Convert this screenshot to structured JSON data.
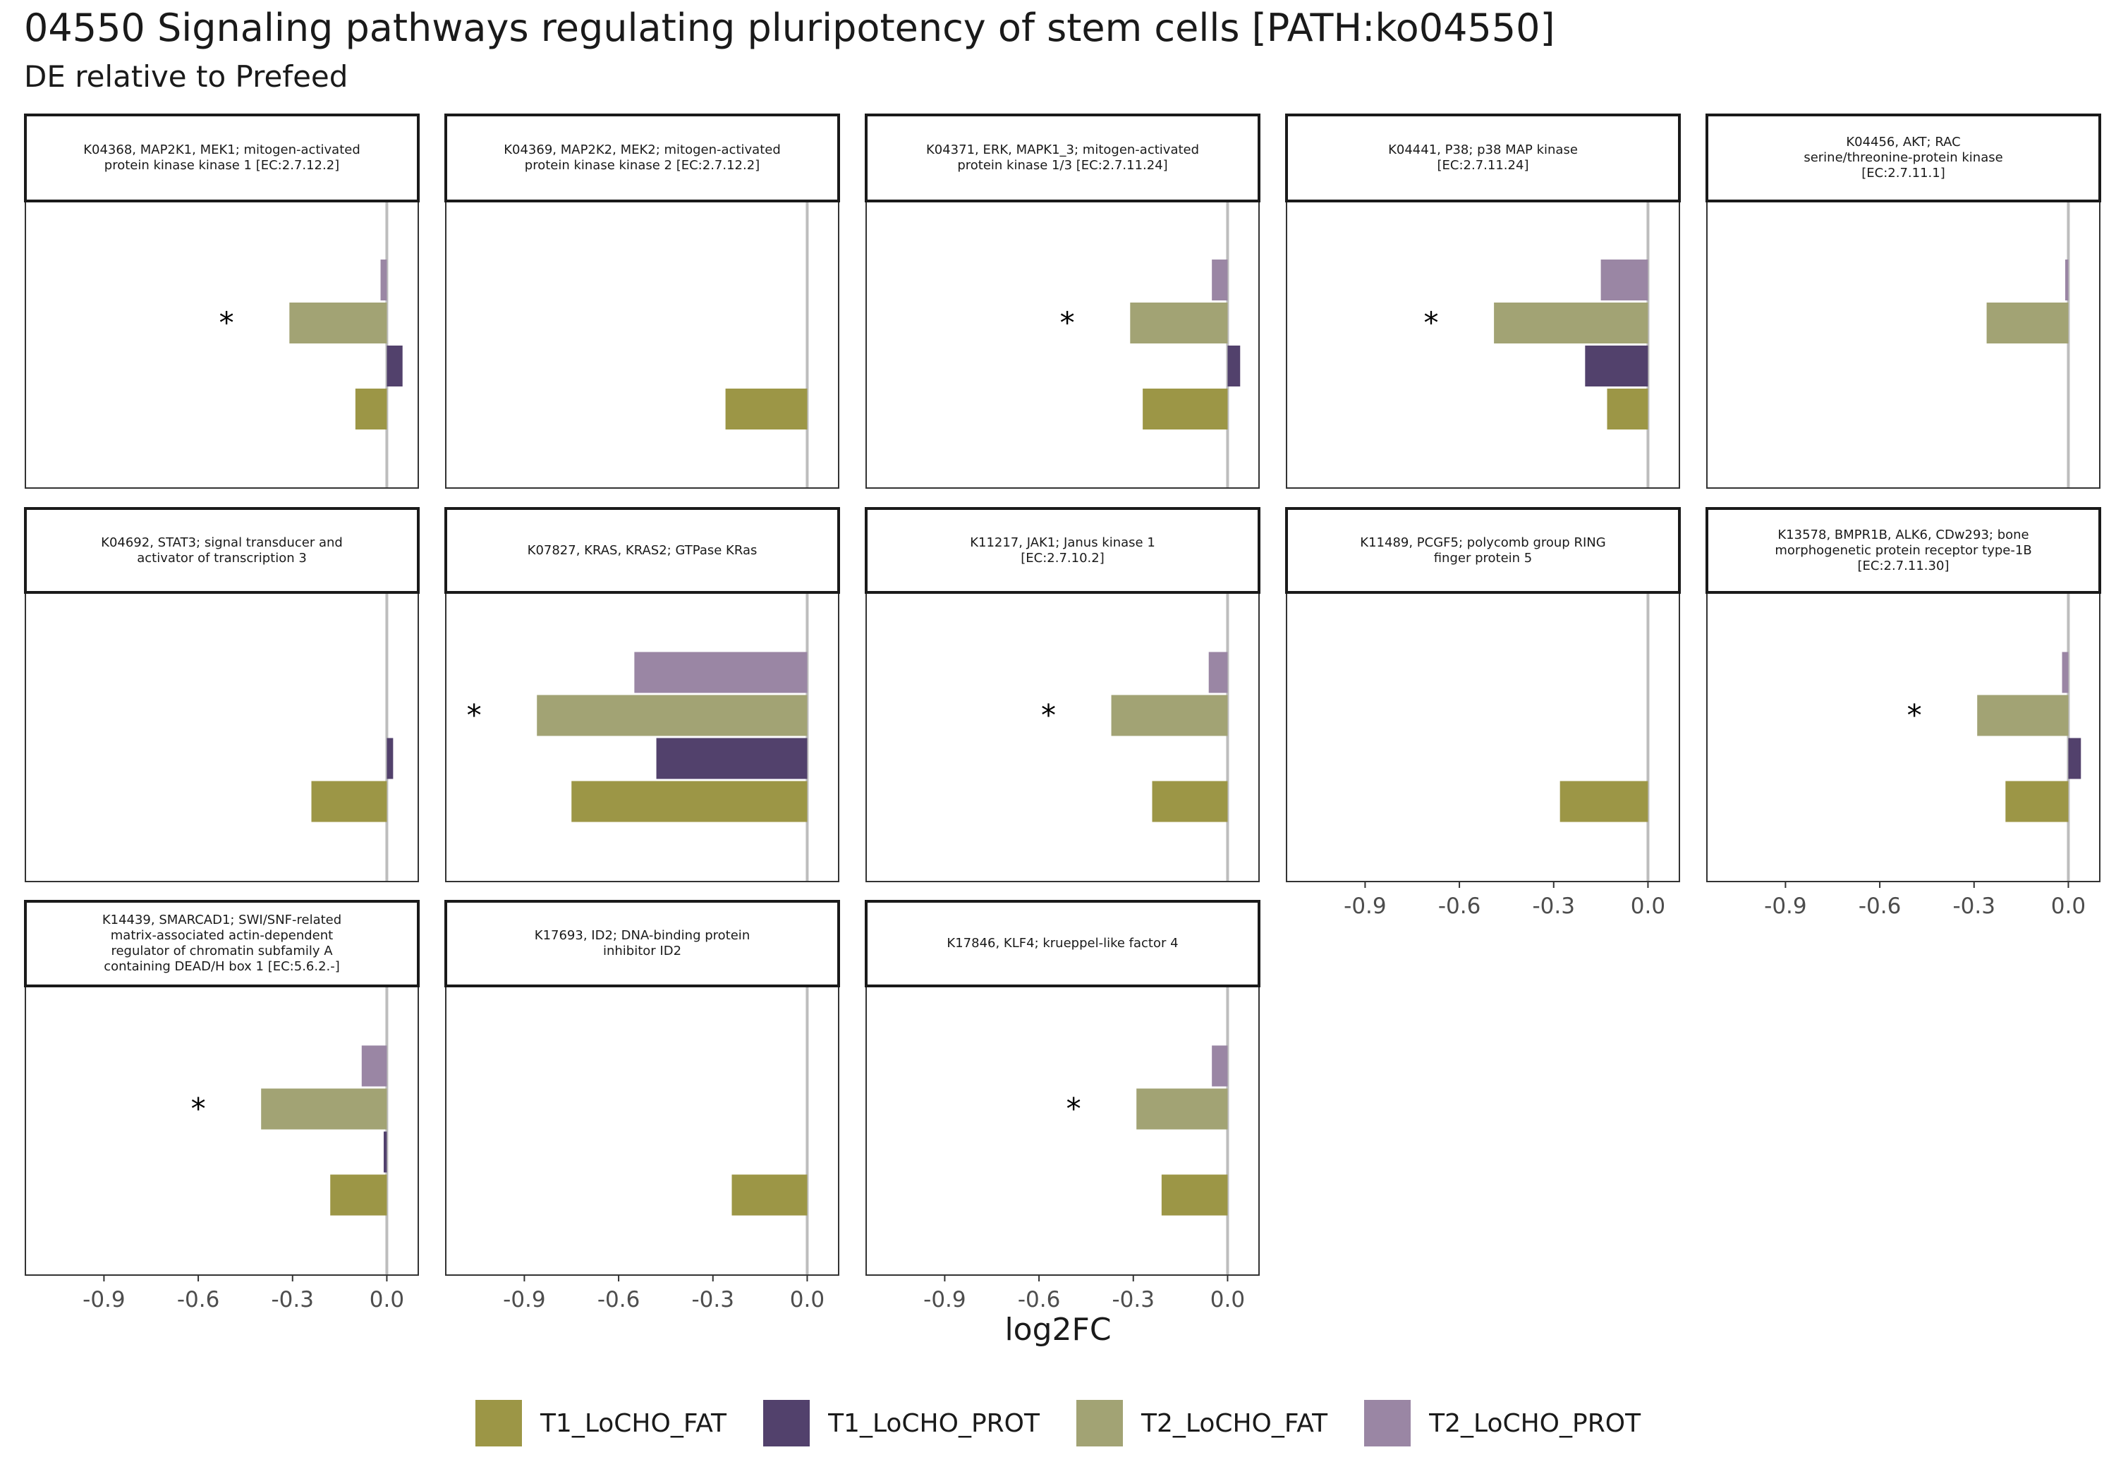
{
  "title": "04550 Signaling pathways regulating pluripotency of stem cells [PATH:ko04550]",
  "subtitle": "DE relative to Prefeed",
  "chart_data": {
    "type": "bar",
    "orientation": "horizontal",
    "xlabel": "log2FC",
    "xlim": [
      -1.15,
      0.1
    ],
    "x_ticks": [
      -0.9,
      -0.6,
      -0.3,
      0.0
    ],
    "x_tick_labels": [
      "-0.9",
      "-0.6",
      "-0.3",
      "0.0"
    ],
    "significance_marker": "*",
    "series": [
      {
        "name": "T1_LoCHO_FAT",
        "color": "#9c9646"
      },
      {
        "name": "T1_LoCHO_PROT",
        "color": "#52416c"
      },
      {
        "name": "T2_LoCHO_FAT",
        "color": "#a2a374"
      },
      {
        "name": "T2_LoCHO_PROT",
        "color": "#9a86a4"
      }
    ],
    "panels": [
      {
        "label": [
          "K04368, MAP2K1, MEK1; mitogen-activated",
          "protein kinase kinase 1 [EC:2.7.12.2]"
        ],
        "values": {
          "T1_LoCHO_FAT": -0.1,
          "T1_LoCHO_PROT": 0.05,
          "T2_LoCHO_FAT": -0.31,
          "T2_LoCHO_PROT": -0.02
        },
        "star": -0.51
      },
      {
        "label": [
          "K04369, MAP2K2, MEK2; mitogen-activated",
          "protein kinase kinase 2 [EC:2.7.12.2]"
        ],
        "values": {
          "T1_LoCHO_FAT": -0.26,
          "T1_LoCHO_PROT": null,
          "T2_LoCHO_FAT": null,
          "T2_LoCHO_PROT": null
        },
        "star": null
      },
      {
        "label": [
          "K04371, ERK, MAPK1_3; mitogen-activated",
          "protein kinase 1/3 [EC:2.7.11.24]"
        ],
        "values": {
          "T1_LoCHO_FAT": -0.27,
          "T1_LoCHO_PROT": 0.04,
          "T2_LoCHO_FAT": -0.31,
          "T2_LoCHO_PROT": -0.05
        },
        "star": -0.51
      },
      {
        "label": [
          "K04441, P38; p38 MAP kinase",
          "[EC:2.7.11.24]"
        ],
        "values": {
          "T1_LoCHO_FAT": -0.13,
          "T1_LoCHO_PROT": -0.2,
          "T2_LoCHO_FAT": -0.49,
          "T2_LoCHO_PROT": -0.15
        },
        "star": -0.69
      },
      {
        "label": [
          "K04456, AKT; RAC",
          "serine/threonine-protein kinase",
          "[EC:2.7.11.1]"
        ],
        "values": {
          "T1_LoCHO_FAT": null,
          "T1_LoCHO_PROT": null,
          "T2_LoCHO_FAT": -0.26,
          "T2_LoCHO_PROT": -0.01
        },
        "star": null
      },
      {
        "label": [
          "K04692, STAT3; signal transducer and",
          "activator of transcription 3"
        ],
        "values": {
          "T1_LoCHO_FAT": -0.24,
          "T1_LoCHO_PROT": 0.02,
          "T2_LoCHO_FAT": null,
          "T2_LoCHO_PROT": null
        },
        "star": null
      },
      {
        "label": [
          "K07827, KRAS, KRAS2; GTPase KRas"
        ],
        "values": {
          "T1_LoCHO_FAT": -0.75,
          "T1_LoCHO_PROT": -0.48,
          "T2_LoCHO_FAT": -0.86,
          "T2_LoCHO_PROT": -0.55
        },
        "star": -1.06
      },
      {
        "label": [
          "K11217, JAK1; Janus kinase 1",
          "[EC:2.7.10.2]"
        ],
        "values": {
          "T1_LoCHO_FAT": -0.24,
          "T1_LoCHO_PROT": null,
          "T2_LoCHO_FAT": -0.37,
          "T2_LoCHO_PROT": -0.06
        },
        "star": -0.57
      },
      {
        "label": [
          "K11489, PCGF5; polycomb group RING",
          "finger protein 5"
        ],
        "values": {
          "T1_LoCHO_FAT": -0.28,
          "T1_LoCHO_PROT": null,
          "T2_LoCHO_FAT": null,
          "T2_LoCHO_PROT": null
        },
        "star": null
      },
      {
        "label": [
          "K13578, BMPR1B, ALK6, CDw293; bone",
          "morphogenetic protein receptor type-1B",
          "[EC:2.7.11.30]"
        ],
        "values": {
          "T1_LoCHO_FAT": -0.2,
          "T1_LoCHO_PROT": 0.04,
          "T2_LoCHO_FAT": -0.29,
          "T2_LoCHO_PROT": -0.02
        },
        "star": -0.49
      },
      {
        "label": [
          "K14439, SMARCAD1; SWI/SNF-related",
          "matrix-associated actin-dependent",
          "regulator of chromatin subfamily A",
          "containing DEAD/H box 1 [EC:5.6.2.-]"
        ],
        "values": {
          "T1_LoCHO_FAT": -0.18,
          "T1_LoCHO_PROT": -0.01,
          "T2_LoCHO_FAT": -0.4,
          "T2_LoCHO_PROT": -0.08
        },
        "star": -0.6
      },
      {
        "label": [
          "K17693, ID2; DNA-binding protein",
          "inhibitor ID2"
        ],
        "values": {
          "T1_LoCHO_FAT": -0.24,
          "T1_LoCHO_PROT": null,
          "T2_LoCHO_FAT": null,
          "T2_LoCHO_PROT": null
        },
        "star": null
      },
      {
        "label": [
          "K17846, KLF4; krueppel-like factor 4"
        ],
        "values": {
          "T1_LoCHO_FAT": -0.21,
          "T1_LoCHO_PROT": null,
          "T2_LoCHO_FAT": -0.29,
          "T2_LoCHO_PROT": -0.05
        },
        "star": -0.49
      }
    ]
  }
}
